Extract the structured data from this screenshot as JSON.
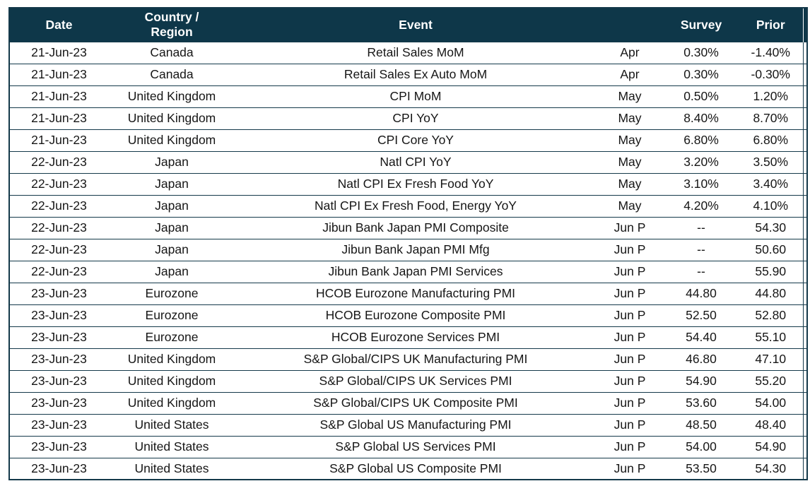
{
  "table": {
    "header_bg": "#0e3749",
    "border_color": "#14394a",
    "header_text_color": "#ffffff",
    "body_text_color": "#161616",
    "columns": [
      {
        "key": "date",
        "label": "Date"
      },
      {
        "key": "country",
        "label": "Country /\nRegion"
      },
      {
        "key": "event",
        "label": "Event"
      },
      {
        "key": "period",
        "label": ""
      },
      {
        "key": "survey",
        "label": "Survey"
      },
      {
        "key": "prior",
        "label": "Prior"
      }
    ],
    "rows": [
      {
        "date": "21-Jun-23",
        "country": "Canada",
        "event": "Retail Sales MoM",
        "period": "Apr",
        "survey": "0.30%",
        "prior": "-1.40%"
      },
      {
        "date": "21-Jun-23",
        "country": "Canada",
        "event": "Retail Sales Ex Auto MoM",
        "period": "Apr",
        "survey": "0.30%",
        "prior": "-0.30%"
      },
      {
        "date": "21-Jun-23",
        "country": "United Kingdom",
        "event": "CPI MoM",
        "period": "May",
        "survey": "0.50%",
        "prior": "1.20%"
      },
      {
        "date": "21-Jun-23",
        "country": "United Kingdom",
        "event": "CPI YoY",
        "period": "May",
        "survey": "8.40%",
        "prior": "8.70%"
      },
      {
        "date": "21-Jun-23",
        "country": "United Kingdom",
        "event": "CPI Core YoY",
        "period": "May",
        "survey": "6.80%",
        "prior": "6.80%"
      },
      {
        "date": "22-Jun-23",
        "country": "Japan",
        "event": "Natl CPI YoY",
        "period": "May",
        "survey": "3.20%",
        "prior": "3.50%"
      },
      {
        "date": "22-Jun-23",
        "country": "Japan",
        "event": "Natl CPI Ex Fresh Food YoY",
        "period": "May",
        "survey": "3.10%",
        "prior": "3.40%"
      },
      {
        "date": "22-Jun-23",
        "country": "Japan",
        "event": "Natl CPI Ex Fresh Food, Energy YoY",
        "period": "May",
        "survey": "4.20%",
        "prior": "4.10%"
      },
      {
        "date": "22-Jun-23",
        "country": "Japan",
        "event": "Jibun Bank Japan PMI Composite",
        "period": "Jun P",
        "survey": "--",
        "prior": "54.30"
      },
      {
        "date": "22-Jun-23",
        "country": "Japan",
        "event": "Jibun Bank Japan PMI Mfg",
        "period": "Jun P",
        "survey": "--",
        "prior": "50.60"
      },
      {
        "date": "22-Jun-23",
        "country": "Japan",
        "event": "Jibun Bank Japan PMI Services",
        "period": "Jun P",
        "survey": "--",
        "prior": "55.90"
      },
      {
        "date": "23-Jun-23",
        "country": "Eurozone",
        "event": "HCOB Eurozone Manufacturing PMI",
        "period": "Jun P",
        "survey": "44.80",
        "prior": "44.80"
      },
      {
        "date": "23-Jun-23",
        "country": "Eurozone",
        "event": "HCOB Eurozone Composite PMI",
        "period": "Jun P",
        "survey": "52.50",
        "prior": "52.80"
      },
      {
        "date": "23-Jun-23",
        "country": "Eurozone",
        "event": "HCOB Eurozone Services PMI",
        "period": "Jun P",
        "survey": "54.40",
        "prior": "55.10"
      },
      {
        "date": "23-Jun-23",
        "country": "United Kingdom",
        "event": "S&P Global/CIPS UK Manufacturing PMI",
        "period": "Jun P",
        "survey": "46.80",
        "prior": "47.10"
      },
      {
        "date": "23-Jun-23",
        "country": "United Kingdom",
        "event": "S&P Global/CIPS UK Services PMI",
        "period": "Jun P",
        "survey": "54.90",
        "prior": "55.20"
      },
      {
        "date": "23-Jun-23",
        "country": "United Kingdom",
        "event": "S&P Global/CIPS UK Composite PMI",
        "period": "Jun P",
        "survey": "53.60",
        "prior": "54.00"
      },
      {
        "date": "23-Jun-23",
        "country": "United States",
        "event": "S&P Global US Manufacturing PMI",
        "period": "Jun P",
        "survey": "48.50",
        "prior": "48.40"
      },
      {
        "date": "23-Jun-23",
        "country": "United States",
        "event": "S&P Global US Services PMI",
        "period": "Jun P",
        "survey": "54.00",
        "prior": "54.90"
      },
      {
        "date": "23-Jun-23",
        "country": "United States",
        "event": "S&P Global US Composite PMI",
        "period": "Jun P",
        "survey": "53.50",
        "prior": "54.30"
      }
    ]
  }
}
